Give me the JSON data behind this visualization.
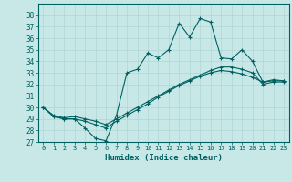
{
  "xlabel": "Humidex (Indice chaleur)",
  "background_color": "#c8e8e8",
  "grid_color": "#b0d4d4",
  "line_color": "#006060",
  "xlim": [
    -0.5,
    23.5
  ],
  "ylim": [
    27,
    39
  ],
  "yticks": [
    27,
    28,
    29,
    30,
    31,
    32,
    33,
    34,
    35,
    36,
    37,
    38
  ],
  "xticks": [
    0,
    1,
    2,
    3,
    4,
    5,
    6,
    7,
    8,
    9,
    10,
    11,
    12,
    13,
    14,
    15,
    16,
    17,
    18,
    19,
    20,
    21,
    22,
    23
  ],
  "line1_x": [
    0,
    1,
    2,
    3,
    4,
    5,
    6,
    7,
    8,
    9,
    10,
    11,
    12,
    13,
    14,
    15,
    16,
    17,
    18,
    19,
    20,
    21,
    22,
    23
  ],
  "line1_y": [
    30,
    29.2,
    29.0,
    29.0,
    28.2,
    27.3,
    27.1,
    29.3,
    33.0,
    33.3,
    34.7,
    34.3,
    35.0,
    37.3,
    36.1,
    37.7,
    37.4,
    34.3,
    34.2,
    35.0,
    34.0,
    32.2,
    32.4,
    32.3
  ],
  "line2_x": [
    0,
    1,
    2,
    3,
    4,
    5,
    6,
    7,
    8,
    9,
    10,
    11,
    12,
    13,
    14,
    15,
    16,
    17,
    18,
    19,
    20,
    21,
    22,
    23
  ],
  "line2_y": [
    30.0,
    29.3,
    29.1,
    29.2,
    29.0,
    28.8,
    28.5,
    29.0,
    29.5,
    30.0,
    30.5,
    31.0,
    31.5,
    32.0,
    32.4,
    32.8,
    33.2,
    33.5,
    33.5,
    33.3,
    33.0,
    32.0,
    32.2,
    32.2
  ],
  "line3_x": [
    0,
    1,
    2,
    3,
    4,
    5,
    6,
    7,
    8,
    9,
    10,
    11,
    12,
    13,
    14,
    15,
    16,
    17,
    18,
    19,
    20,
    21,
    22,
    23
  ],
  "line3_y": [
    30.0,
    29.2,
    29.0,
    29.0,
    28.8,
    28.5,
    28.2,
    28.8,
    29.3,
    29.8,
    30.3,
    30.9,
    31.4,
    31.9,
    32.3,
    32.7,
    33.0,
    33.2,
    33.1,
    32.9,
    32.6,
    32.2,
    32.3,
    32.3
  ]
}
